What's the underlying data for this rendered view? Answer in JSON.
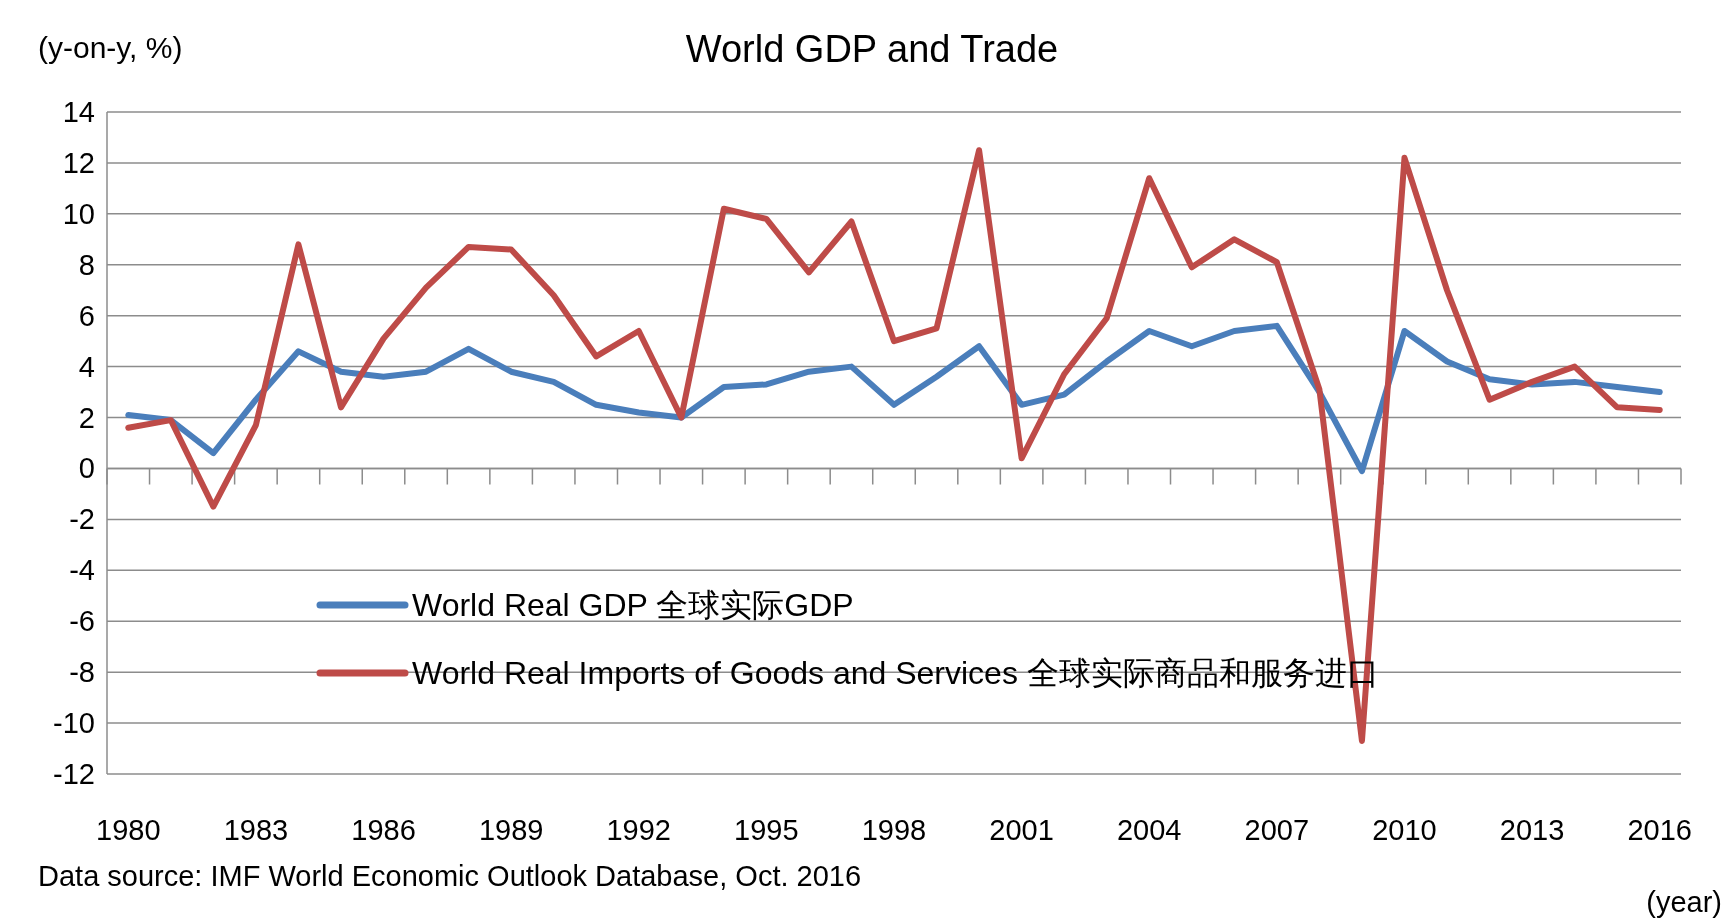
{
  "chart_data": {
    "type": "line",
    "title": "World GDP and Trade",
    "ylabel": "(y-on-y, %)",
    "xlabel": "(year)",
    "annotations": [
      "Data source:  IMF World Economic Outlook Database, Oct. 2016"
    ],
    "categories": [
      "1980",
      null,
      null,
      "1983",
      null,
      null,
      "1986",
      null,
      null,
      "1989",
      null,
      null,
      "1992",
      null,
      null,
      "1995",
      null,
      null,
      "1998",
      null,
      null,
      "2001",
      null,
      null,
      "2004",
      null,
      null,
      "2007",
      null,
      null,
      "2010",
      null,
      null,
      "2013",
      null,
      null,
      "2016"
    ],
    "series": [
      {
        "name": "World Real GDP 全球实际GDP",
        "color": "#4a7ebb",
        "values": [
          2.1,
          1.9,
          0.6,
          2.7,
          4.6,
          3.8,
          3.6,
          3.8,
          4.7,
          3.8,
          3.4,
          2.5,
          2.2,
          2.0,
          3.2,
          3.3,
          3.8,
          4.0,
          2.5,
          3.6,
          4.8,
          2.5,
          2.9,
          4.2,
          5.4,
          4.8,
          5.4,
          5.6,
          3.0,
          -0.1,
          5.4,
          4.2,
          3.5,
          3.3,
          3.4,
          3.2,
          3.0
        ]
      },
      {
        "name": "World Real Imports of Goods and Services 全球实际商品和服务进口",
        "color": "#be4b48",
        "values": [
          1.6,
          1.9,
          -1.5,
          1.7,
          8.8,
          2.4,
          5.1,
          7.1,
          8.7,
          8.6,
          6.8,
          4.4,
          5.4,
          2.0,
          10.2,
          9.8,
          7.7,
          9.7,
          5.0,
          5.5,
          12.5,
          0.4,
          3.7,
          5.9,
          11.4,
          7.9,
          9.0,
          8.1,
          3.1,
          -10.7,
          12.2,
          7.0,
          2.7,
          3.4,
          4.0,
          2.4,
          2.3
        ]
      }
    ],
    "ylim": [
      -12,
      14
    ],
    "yticks": [
      -12,
      -10,
      -8,
      -6,
      -4,
      -2,
      0,
      2,
      4,
      6,
      8,
      10,
      12,
      14
    ],
    "grid": "y",
    "legend": "bottom left",
    "marker": "none",
    "line_style": "solid"
  }
}
